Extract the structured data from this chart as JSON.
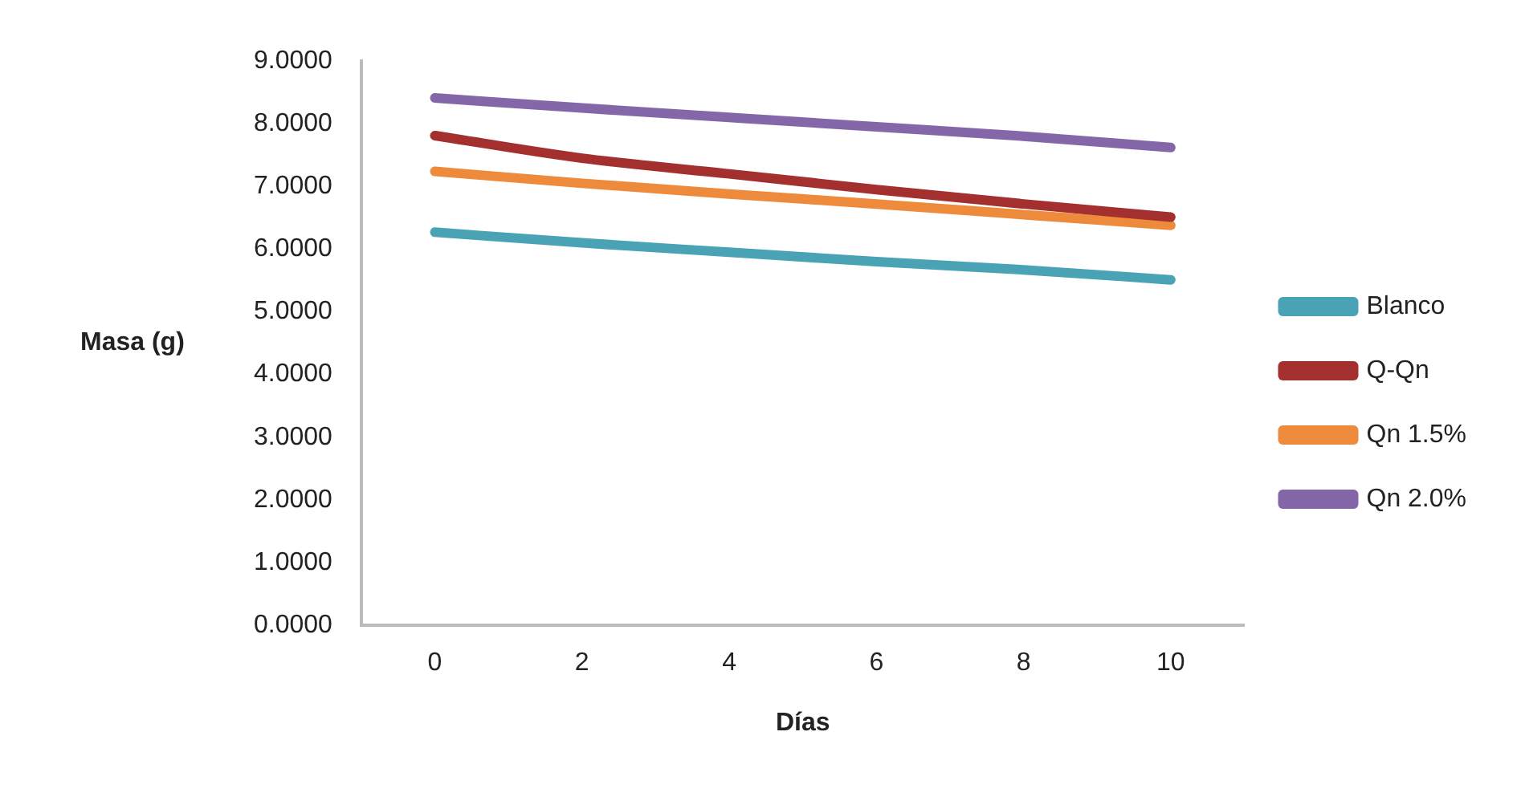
{
  "chart_data": {
    "type": "line",
    "xlabel": "Días",
    "ylabel": "Masa (g)",
    "categories": [
      "0",
      "2",
      "4",
      "6",
      "8",
      "10"
    ],
    "ylim": [
      0,
      9
    ],
    "yticks": [
      {
        "value": 0,
        "label": "0.0000"
      },
      {
        "value": 1,
        "label": "1.0000"
      },
      {
        "value": 2,
        "label": "2.0000"
      },
      {
        "value": 3,
        "label": "3.0000"
      },
      {
        "value": 4,
        "label": "4.0000"
      },
      {
        "value": 5,
        "label": "5.0000"
      },
      {
        "value": 6,
        "label": "6.0000"
      },
      {
        "value": 7,
        "label": "7.0000"
      },
      {
        "value": 8,
        "label": "8.0000"
      },
      {
        "value": 9,
        "label": "9.0000"
      }
    ],
    "series": [
      {
        "name": "Blanco",
        "color": "#4aa3b5",
        "values": [
          6.27,
          6.1,
          5.95,
          5.8,
          5.67,
          5.51
        ]
      },
      {
        "name": "Q-Qn",
        "color": "#a3302e",
        "values": [
          7.81,
          7.45,
          7.2,
          6.95,
          6.72,
          6.51
        ]
      },
      {
        "name": "Qn 1.5%",
        "color": "#ee8a3c",
        "values": [
          7.24,
          7.05,
          6.88,
          6.72,
          6.55,
          6.38
        ]
      },
      {
        "name": "Qn 2.0%",
        "color": "#8467a8",
        "values": [
          8.41,
          8.25,
          8.1,
          7.95,
          7.8,
          7.62
        ]
      }
    ],
    "grid": false,
    "legend": "right",
    "marker": "none",
    "line_style": "solid"
  }
}
